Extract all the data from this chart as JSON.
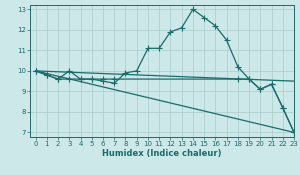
{
  "xlabel": "Humidex (Indice chaleur)",
  "background_color": "#cce8e8",
  "grid_color": "#b0d0d0",
  "line_color": "#1a6b6b",
  "xlim": [
    -0.5,
    23
  ],
  "ylim": [
    6.8,
    13.2
  ],
  "yticks": [
    7,
    8,
    9,
    10,
    11,
    12,
    13
  ],
  "xticks": [
    0,
    1,
    2,
    3,
    4,
    5,
    6,
    7,
    8,
    9,
    10,
    11,
    12,
    13,
    14,
    15,
    16,
    17,
    18,
    19,
    20,
    21,
    22,
    23
  ],
  "series_main": {
    "x": [
      0,
      1,
      2,
      3,
      4,
      5,
      6,
      7,
      8,
      9,
      10,
      11,
      12,
      13,
      14,
      15,
      16,
      17,
      18,
      19,
      20,
      21,
      22,
      23
    ],
    "y": [
      10.0,
      9.8,
      9.6,
      10.0,
      9.6,
      9.6,
      9.5,
      9.4,
      9.9,
      10.0,
      11.1,
      11.1,
      11.9,
      12.1,
      13.0,
      12.6,
      12.2,
      11.5,
      10.2,
      9.6,
      9.1,
      9.35,
      8.2,
      7.0
    ]
  },
  "series_flat": {
    "x": [
      0,
      1,
      2,
      3,
      4,
      5,
      6,
      7,
      18,
      19,
      20,
      21,
      22,
      23
    ],
    "y": [
      10.0,
      9.8,
      9.6,
      9.6,
      9.6,
      9.6,
      9.6,
      9.6,
      9.6,
      9.6,
      9.1,
      9.35,
      8.2,
      7.0
    ]
  },
  "line_gentle": {
    "x": [
      0,
      23
    ],
    "y": [
      10.0,
      9.5
    ]
  },
  "line_steep": {
    "x": [
      0,
      23
    ],
    "y": [
      10.0,
      7.0
    ]
  }
}
